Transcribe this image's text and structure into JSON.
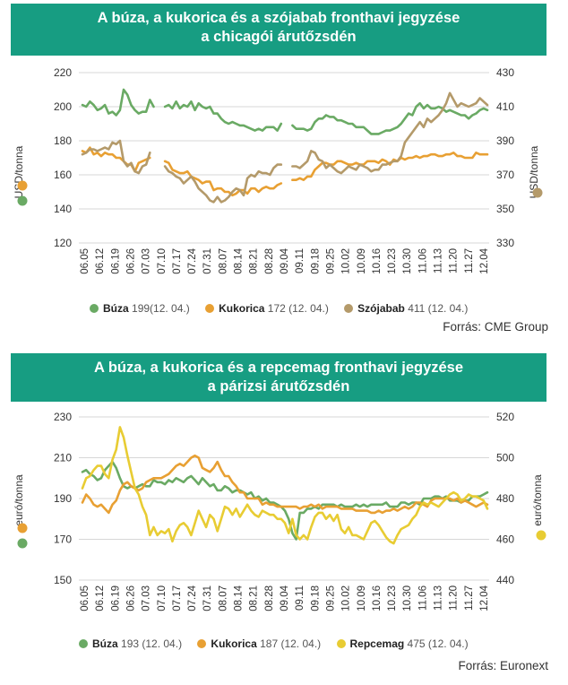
{
  "chart_data": [
    {
      "type": "line",
      "title": "A búza, a kukorica és a szójabab fronthavi jegyzése a chicagói árutőzsdén",
      "title_lines": [
        "A búza, a kukorica és a szójabab fronthavi jegyzése",
        "a chicagói árutőzsdén"
      ],
      "ylabel_left": "USD/tonna",
      "ylabel_right": "USD/tonna",
      "ylim_left": [
        120,
        220
      ],
      "yticks_left": [
        120,
        140,
        160,
        180,
        200,
        220
      ],
      "ylim_right": [
        330,
        430
      ],
      "yticks_right": [
        330,
        350,
        370,
        390,
        410,
        430
      ],
      "xticks": [
        "06.05",
        "06.12",
        "06.19",
        "06.26",
        "07.03",
        "07.10",
        "07.17",
        "07.24",
        "07.31",
        "08.07",
        "08.14",
        "08.21",
        "08.28",
        "09.04",
        "09.11",
        "09.18",
        "09.25",
        "10.02",
        "10.09",
        "10.16",
        "10.23",
        "10.30",
        "11.06",
        "11.13",
        "11.20",
        "11.27",
        "12.04"
      ],
      "series": [
        {
          "name": "Búza",
          "axis": "left",
          "color": "#6aaa64",
          "legend_value": "199(12. 04.)",
          "values": [
            [
              201,
              200,
              203,
              201,
              198,
              199,
              201,
              196,
              197,
              195,
              198,
              210,
              207,
              201,
              198,
              196,
              197,
              197,
              204,
              200,
              null,
              null,
              200,
              201,
              199,
              203,
              199,
              201,
              200,
              203,
              198,
              202,
              200,
              199,
              200,
              196,
              196,
              193,
              191,
              190,
              191,
              190,
              189,
              189,
              188,
              187,
              186,
              187,
              186,
              188,
              188,
              188,
              186,
              190,
              null,
              null,
              189,
              187,
              187,
              187,
              186,
              187,
              191,
              193,
              193,
              195,
              194,
              194,
              192,
              192,
              191,
              190,
              190,
              188,
              188,
              188,
              186,
              184,
              184,
              184,
              185,
              186,
              186,
              187,
              188,
              190,
              193,
              196,
              195,
              200,
              202,
              199,
              201,
              199,
              199,
              200,
              199,
              197,
              198,
              197,
              196,
              195,
              195,
              193,
              195,
              196,
              198,
              199,
              198
            ]
          ]
        },
        {
          "name": "Kukorica",
          "axis": "left",
          "color": "#e8a033",
          "legend_value": "172 (12. 04.)",
          "values": [
            [
              174,
              173,
              176,
              172,
              173,
              171,
              173,
              172,
              172,
              170,
              170,
              168,
              166,
              166,
              162,
              167,
              168,
              169,
              170,
              null,
              null,
              null,
              168,
              167,
              163,
              162,
              161,
              161,
              162,
              159,
              158,
              157,
              155,
              156,
              156,
              151,
              152,
              152,
              150,
              150,
              148,
              149,
              151,
              151,
              149,
              152,
              152,
              150,
              152,
              153,
              152,
              152,
              154,
              155,
              null,
              null,
              157,
              157,
              158,
              157,
              159,
              159,
              163,
              165,
              167,
              167,
              166,
              166,
              168,
              168,
              167,
              166,
              166,
              167,
              166,
              166,
              168,
              168,
              168,
              167,
              169,
              168,
              166,
              169,
              168,
              170,
              169,
              170,
              170,
              171,
              170,
              171,
              171,
              172,
              172,
              171,
              171,
              172,
              172,
              173,
              171,
              171,
              170,
              170,
              170,
              173,
              172,
              172,
              172
            ]
          ]
        },
        {
          "name": "Szójabab",
          "axis": "right",
          "color": "#b49a6a",
          "legend_value": "411 (12. 04.)",
          "values": [
            [
              382,
              383,
              385,
              385,
              384,
              385,
              386,
              385,
              389,
              388,
              390,
              378,
              375,
              377,
              372,
              371,
              375,
              376,
              383,
              null,
              null,
              null,
              375,
              372,
              371,
              369,
              368,
              365,
              367,
              369,
              366,
              362,
              360,
              358,
              355,
              354,
              357,
              354,
              355,
              357,
              360,
              362,
              361,
              358,
              368,
              370,
              369,
              372,
              371,
              371,
              370,
              374,
              376,
              376,
              null,
              null,
              375,
              375,
              374,
              376,
              378,
              384,
              383,
              379,
              378,
              374,
              376,
              374,
              372,
              371,
              373,
              375,
              374,
              373,
              376,
              375,
              374,
              372,
              373,
              373,
              376,
              376,
              377,
              378,
              378,
              381,
              389,
              392,
              395,
              398,
              401,
              398,
              403,
              401,
              403,
              405,
              408,
              412,
              418,
              414,
              410,
              412,
              411,
              410,
              411,
              412,
              415,
              413,
              411
            ]
          ]
        }
      ]
    },
    {
      "type": "line",
      "title": "A búza, a kukorica és a repcemag fronthavi jegyzése a párizsi árutőzsdén",
      "title_lines": [
        "A búza, a kukorica és a repcemag fronthavi jegyzése",
        "a párizsi árutőzsdén"
      ],
      "ylabel_left": "euró/tonna",
      "ylabel_right": "euró/tonna",
      "ylim_left": [
        150,
        230
      ],
      "yticks_left": [
        150,
        170,
        190,
        210,
        230
      ],
      "ylim_right": [
        440,
        520
      ],
      "yticks_right": [
        440,
        460,
        480,
        500,
        520
      ],
      "xticks": [
        "06.05",
        "06.12",
        "06.19",
        "06.26",
        "07.03",
        "07.10",
        "07.17",
        "07.24",
        "07.31",
        "08.07",
        "08.14",
        "08.21",
        "08.28",
        "09.04",
        "09.11",
        "09.18",
        "09.25",
        "10.02",
        "10.09",
        "10.16",
        "10.23",
        "10.30",
        "11.06",
        "11.13",
        "11.20",
        "11.27",
        "12.04"
      ],
      "series": [
        {
          "name": "Búza",
          "axis": "left",
          "color": "#6aaa64",
          "legend_value": "193 (12. 04.)",
          "values": [
            [
              203,
              204,
              202,
              201,
              199,
              200,
              204,
              206,
              208,
              205,
              200,
              196,
              195,
              196,
              195,
              196,
              197,
              196,
              196,
              199,
              198,
              198,
              197,
              199,
              198,
              200,
              199,
              198,
              200,
              201,
              199,
              197,
              200,
              198,
              196,
              197,
              194,
              194,
              196,
              195,
              193,
              194,
              194,
              193,
              192,
              193,
              190,
              191,
              189,
              190,
              188,
              188,
              187,
              186,
              184,
              180,
              173,
              170,
              183,
              183,
              185,
              185,
              186,
              185,
              187,
              187,
              187,
              187,
              186,
              187,
              186,
              186,
              186,
              187,
              186,
              187,
              186,
              187,
              187,
              187,
              187,
              188,
              186,
              186,
              186,
              188,
              188,
              187,
              188,
              188,
              187,
              190,
              190,
              190,
              191,
              191,
              190,
              191,
              189,
              189,
              189,
              188,
              189,
              189,
              191,
              191,
              191,
              192,
              193
            ]
          ]
        },
        {
          "name": "Kukorica",
          "axis": "left",
          "color": "#e8a033",
          "legend_value": "187 (12. 04.)",
          "values": [
            [
              188,
              192,
              190,
              187,
              186,
              187,
              185,
              183,
              187,
              189,
              194,
              197,
              198,
              196,
              195,
              194,
              195,
              198,
              199,
              200,
              200,
              200,
              201,
              202,
              204,
              206,
              207,
              206,
              208,
              210,
              211,
              210,
              205,
              204,
              203,
              205,
              208,
              204,
              201,
              201,
              198,
              196,
              193,
              193,
              190,
              190,
              190,
              190,
              187,
              188,
              187,
              187,
              186,
              186,
              186,
              186,
              186,
              186,
              185,
              186,
              186,
              187,
              186,
              187,
              185,
              186,
              186,
              186,
              186,
              185,
              185,
              185,
              185,
              184,
              184,
              184,
              184,
              183,
              183,
              184,
              183,
              184,
              184,
              185,
              184,
              185,
              186,
              185,
              186,
              188,
              188,
              187,
              186,
              189,
              190,
              190,
              190,
              190,
              190,
              189,
              190,
              188,
              189,
              188,
              187,
              186,
              187,
              188,
              187
            ]
          ]
        },
        {
          "name": "Repcemag",
          "axis": "right",
          "color": "#e8cc33",
          "legend_value": "475 (12. 04.)",
          "values": [
            [
              485,
              490,
              491,
              494,
              496,
              496,
              492,
              490,
              499,
              504,
              515,
              510,
              501,
              493,
              485,
              482,
              476,
              472,
              462,
              466,
              462,
              464,
              463,
              465,
              459,
              464,
              467,
              468,
              466,
              462,
              468,
              474,
              470,
              466,
              472,
              470,
              464,
              470,
              476,
              475,
              472,
              475,
              471,
              474,
              477,
              474,
              472,
              471,
              474,
              473,
              472,
              472,
              470,
              470,
              468,
              463,
              470,
              462,
              460,
              462,
              460,
              466,
              471,
              473,
              473,
              470,
              472,
              469,
              472,
              465,
              463,
              466,
              462,
              462,
              461,
              460,
              464,
              468,
              469,
              467,
              464,
              461,
              459,
              458,
              462,
              465,
              466,
              467,
              470,
              472,
              476,
              478,
              477,
              478,
              477,
              476,
              478,
              480,
              482,
              483,
              482,
              479,
              480,
              482,
              481,
              481,
              480,
              479,
              475
            ]
          ]
        }
      ]
    }
  ],
  "legend1": [
    {
      "name": "Búza",
      "value": "199(12. 04.)",
      "color": "#6aaa64"
    },
    {
      "name": "Kukorica",
      "value": "172 (12. 04.)",
      "color": "#e8a033"
    },
    {
      "name": "Szójabab",
      "value": "411 (12. 04.)",
      "color": "#b49a6a"
    }
  ],
  "legend2": [
    {
      "name": "Búza",
      "value": "193 (12. 04.)",
      "color": "#6aaa64"
    },
    {
      "name": "Kukorica",
      "value": "187 (12. 04.)",
      "color": "#e8a033"
    },
    {
      "name": "Repcemag",
      "value": "475 (12. 04.)",
      "color": "#e8cc33"
    }
  ],
  "source1": "Forrás: CME Group",
  "source2": "Forrás: Euronext",
  "accent_color": "#179d82"
}
